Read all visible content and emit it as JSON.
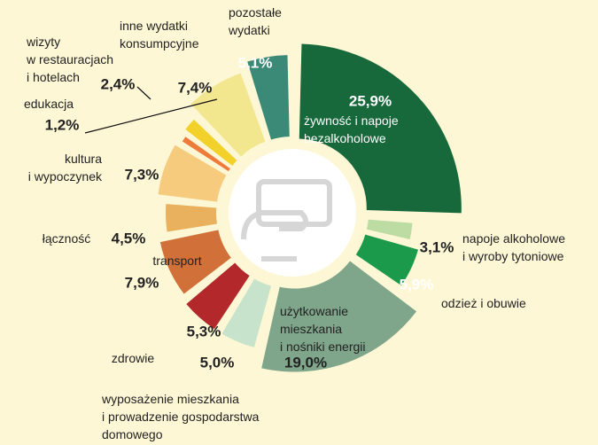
{
  "chart_data": {
    "type": "donut",
    "categories": [
      "żywność i napoje\nbezalkoholowe",
      "napoje alkoholowe\ni wyroby tytoniowe",
      "odzież i obuwie",
      "użytkowanie\nmieszkania\ni nośniki energii",
      "wyposażenie mieszkania\ni prowadzenie gospodarstwa\ndomowego",
      "zdrowie",
      "transport",
      "łączność",
      "kultura\ni wypoczynek",
      "edukacja",
      "wizyty\nw restauracjach\ni hotelach",
      "inne wydatki\nkonsumpcyjne",
      "pozostałe\nwydatki"
    ],
    "values": [
      25.9,
      3.1,
      5.9,
      19.0,
      5.0,
      5.3,
      7.9,
      4.5,
      7.3,
      1.2,
      2.4,
      7.4,
      5.1
    ],
    "value_labels": [
      "25,9%",
      "3,1%",
      "5,9%",
      "19,0%",
      "5,0%",
      "5,3%",
      "7,9%",
      "4,5%",
      "7,3%",
      "1,2%",
      "2,4%",
      "7,4%",
      "5,1%"
    ],
    "colors": [
      "#17683a",
      "#bcdca4",
      "#1a9a4a",
      "#7fa58a",
      "#c7e3cb",
      "#b3282b",
      "#d2703a",
      "#e9b15e",
      "#f6cb7d",
      "#ef7b3b",
      "#f1d12a",
      "#f2e68e",
      "#3b8a78"
    ]
  }
}
